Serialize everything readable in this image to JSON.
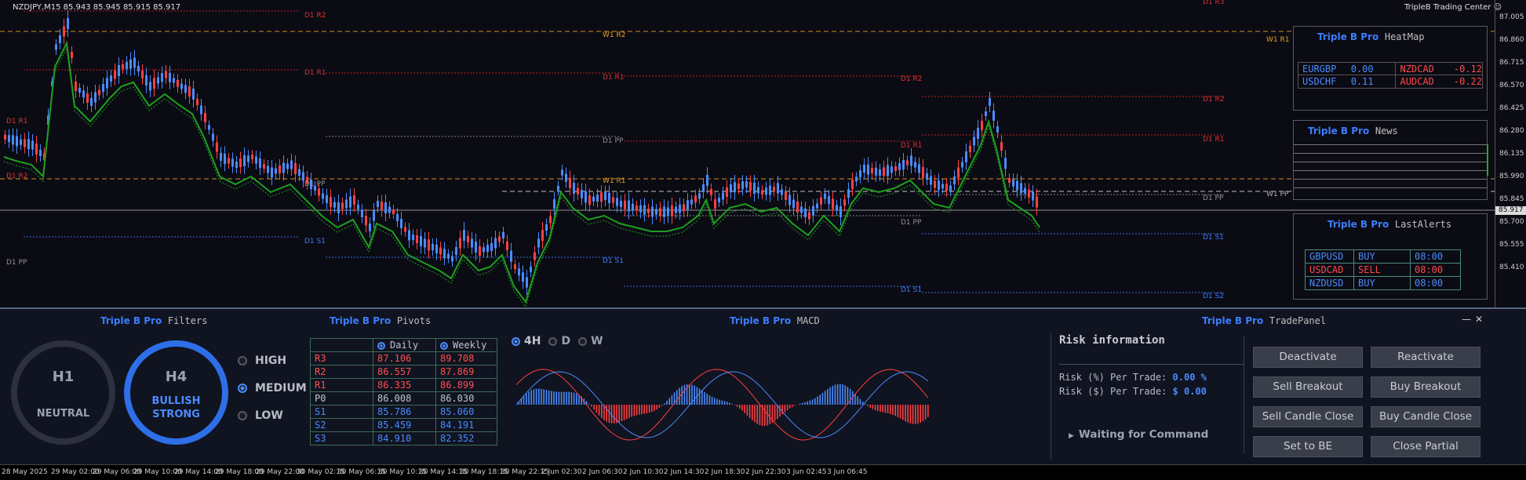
{
  "chart": {
    "symbol_line": "NZDJPY,M15  85.943 85.945 85.915 85.917",
    "brand": "TripleB Trading Center",
    "smiley_icon": "smiley-icon",
    "current_price": "85.917",
    "price_ticks": [
      "87.005",
      "86.860",
      "86.715",
      "86.570",
      "86.425",
      "86.280",
      "86.135",
      "85.990",
      "85.845",
      "85.700",
      "85.555",
      "85.410"
    ],
    "time_ticks": [
      "28 May 2025",
      "29 May 02:00",
      "29 May 06:00",
      "29 May 10:00",
      "29 May 14:00",
      "29 May 18:00",
      "29 May 22:00",
      "30 May 02:15",
      "30 May 06:15",
      "30 May 10:15",
      "30 May 14:15",
      "30 May 18:15",
      "30 May 22:15",
      "2 Jun 02:30",
      "2 Jun 06:30",
      "2 Jun 10:30",
      "2 Jun 14:30",
      "2 Jun 18:30",
      "2 Jun 22:30",
      "3 Jun 02:45",
      "3 Jun 06:45"
    ],
    "level_labels": {
      "d1r2": "D1 R2",
      "d1r1": "D1 R1",
      "d1pp": "D1 PP",
      "d1s1": "D1 S1",
      "d1s2": "D1 S2",
      "w1r2": "W1 R2",
      "w1r1": "W1 R1",
      "w1pp": "W1 PP",
      "d1r3": "D1 R3"
    }
  },
  "heatmap": {
    "brand": "Triple B Pro",
    "title": "HeatMap",
    "rows": [
      {
        "left_pair": "EURGBP",
        "left_val": "0.00",
        "right_pair": "NZDCAD",
        "right_val": "-0.12"
      },
      {
        "left_pair": "USDCHF",
        "left_val": "0.11",
        "right_pair": "AUDCAD",
        "right_val": "-0.22"
      }
    ]
  },
  "news": {
    "brand": "Triple B Pro",
    "title": "News"
  },
  "lastalerts": {
    "brand": "Triple B Pro",
    "title": "LastAlerts",
    "rows": [
      {
        "pair": "GBPUSD",
        "side": "BUY",
        "time": "08:00"
      },
      {
        "pair": "USDCAD",
        "side": "SELL",
        "time": "08:00"
      },
      {
        "pair": "NZDUSD",
        "side": "BUY",
        "time": "08:00"
      }
    ]
  },
  "filters": {
    "brand": "Triple B Pro",
    "title": "Filters",
    "h1": {
      "tf": "H1",
      "status": "NEUTRAL"
    },
    "h4": {
      "tf": "H4",
      "status1": "BULLISH",
      "status2": "STRONG"
    },
    "options": [
      "HIGH",
      "MEDIUM",
      "LOW"
    ],
    "selected": "MEDIUM"
  },
  "pivots": {
    "brand": "Triple B Pro",
    "title": "Pivots",
    "headers": [
      "Daily",
      "Weekly"
    ],
    "rows": [
      {
        "label": "R3",
        "daily": "87.106",
        "weekly": "89.708"
      },
      {
        "label": "R2",
        "daily": "86.557",
        "weekly": "87.869"
      },
      {
        "label": "R1",
        "daily": "86.335",
        "weekly": "86.899"
      },
      {
        "label": "P0",
        "daily": "86.008",
        "weekly": "86.030"
      },
      {
        "label": "S1",
        "daily": "85.786",
        "weekly": "85.060"
      },
      {
        "label": "S2",
        "daily": "85.459",
        "weekly": "84.191"
      },
      {
        "label": "S3",
        "daily": "84.910",
        "weekly": "82.352"
      }
    ]
  },
  "macd": {
    "brand": "Triple B Pro",
    "title": "MACD",
    "tabs": [
      "4H",
      "D",
      "W"
    ],
    "selected": "4H"
  },
  "tradepanel": {
    "brand": "Triple B Pro",
    "title": "TradePanel",
    "minimize": "—",
    "close": "✕",
    "risk_title": "Risk information",
    "risk_pct_label": "Risk (%) Per Trade:",
    "risk_pct_value": "0.00 %",
    "risk_usd_label": "Risk ($) Per Trade:",
    "risk_usd_value": "$ 0.00",
    "status": "Waiting for Command",
    "buttons": [
      "Deactivate",
      "Reactivate",
      "Sell Breakout",
      "Buy Breakout",
      "Sell Candle Close",
      "Buy Candle Close",
      "Set to BE",
      "Close Partial"
    ]
  },
  "colors": {
    "accent": "#3c7dff",
    "sell": "#ff4a4a",
    "buy": "#4a8cff",
    "green": "#1ea01e"
  }
}
